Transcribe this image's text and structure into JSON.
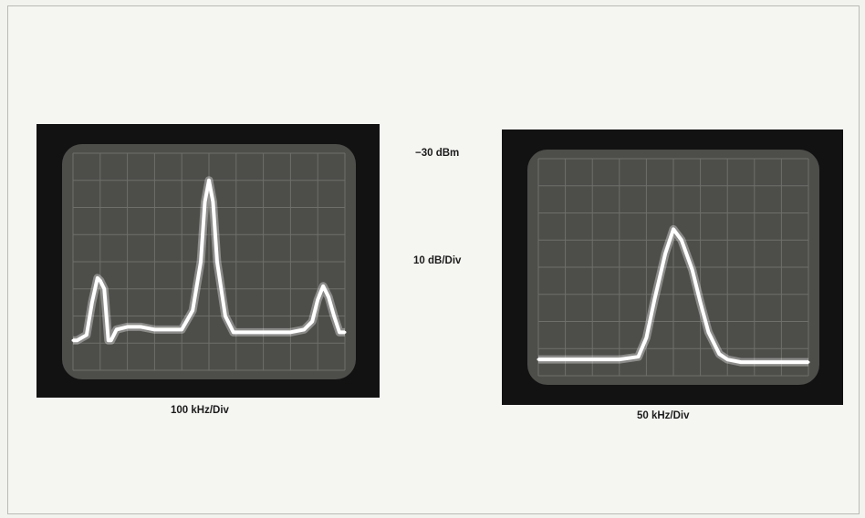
{
  "labels": {
    "reference_level": "−30 dBm",
    "vertical_scale": "10 dB/Div"
  },
  "chart_data": [
    {
      "type": "line",
      "xlabel": "100 kHz/Div",
      "ylabel": "",
      "grid": true,
      "xlim": [
        0,
        10
      ],
      "ylim": [
        -110,
        -30
      ],
      "series": [
        {
          "x": [
            0,
            0.15,
            0.5,
            0.7,
            0.9,
            1.0,
            1.15,
            1.3,
            1.4,
            1.6,
            2.0,
            2.5,
            3.0,
            3.5,
            4.0,
            4.4,
            4.7,
            4.85,
            5.0,
            5.15,
            5.3,
            5.6,
            5.9,
            6.2,
            6.5,
            7.0,
            7.5,
            8.0,
            8.5,
            8.8,
            9.0,
            9.2,
            9.4,
            9.6,
            9.8,
            10.0
          ],
          "y": [
            -99,
            -99,
            -97,
            -85,
            -76,
            -77,
            -80,
            -99,
            -99,
            -95,
            -94,
            -94,
            -95,
            -95,
            -95,
            -88,
            -70,
            -48,
            -40,
            -48,
            -70,
            -90,
            -96,
            -96,
            -96,
            -96,
            -96,
            -96,
            -95,
            -92,
            -84,
            -79,
            -83,
            -90,
            -96,
            -96
          ]
        }
      ]
    },
    {
      "type": "line",
      "xlabel": "50 kHz/Div",
      "ylabel": "",
      "grid": true,
      "xlim": [
        0,
        10
      ],
      "ylim": [
        -110,
        -30
      ],
      "series": [
        {
          "x": [
            0,
            1.0,
            2.0,
            3.0,
            3.7,
            4.0,
            4.3,
            4.7,
            5.0,
            5.3,
            5.7,
            6.0,
            6.3,
            6.7,
            7.0,
            7.5,
            8.0,
            9.0,
            10.0
          ],
          "y": [
            -104,
            -104,
            -104,
            -104,
            -103,
            -96,
            -82,
            -65,
            -56,
            -60,
            -71,
            -83,
            -94,
            -102,
            -104,
            -105,
            -105,
            -105,
            -105
          ]
        }
      ]
    }
  ]
}
